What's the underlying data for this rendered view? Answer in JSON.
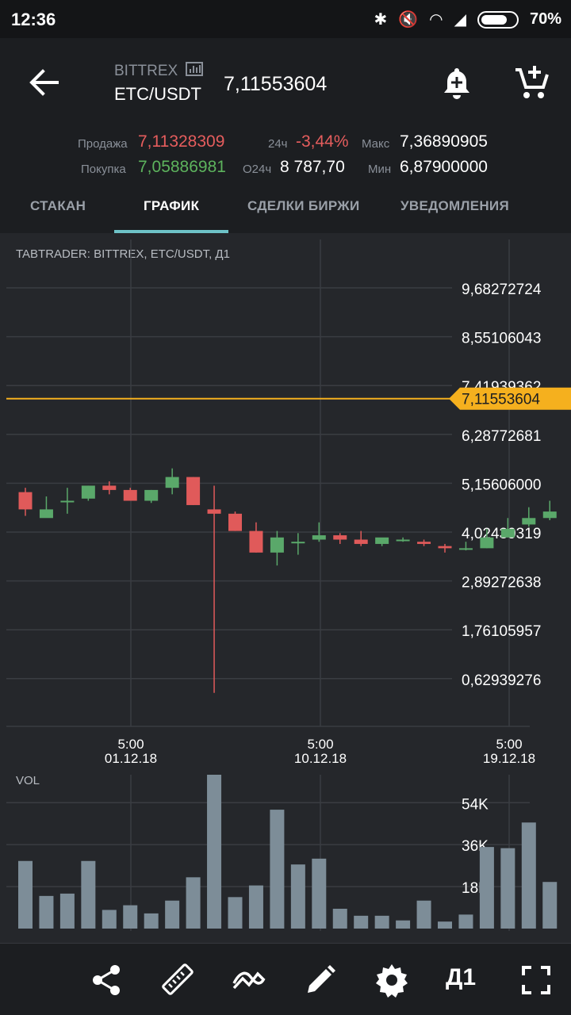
{
  "status_bar": {
    "time": "12:36",
    "battery": "70%"
  },
  "header": {
    "exchange": "BITTREX",
    "pair": "ETC/USDT",
    "last_price": "7,11553604",
    "sell_label": "Продажа",
    "sell_value": "7,11328309",
    "buy_label": "Покупка",
    "buy_value": "7,05886981",
    "change_label": "24ч",
    "change_value": "-3,44%",
    "volume_label": "О24ч",
    "volume_value": "8 787,70",
    "high_label": "Макс",
    "high_value": "7,36890905",
    "low_label": "Мин",
    "low_value": "6,87900000"
  },
  "tabs": [
    {
      "label": "СТАКАН"
    },
    {
      "label": "ГРАФИК"
    },
    {
      "label": "СДЕЛКИ БИРЖИ"
    },
    {
      "label": "УВЕДОМЛЕНИЯ"
    }
  ],
  "chart": {
    "title": "TABTRADER: BITTREX, ETC/USDT, Д1",
    "current_price_label": "7,11553604",
    "y_ticks": [
      "9,68272724",
      "8,55106043",
      "7,41939362",
      "6,28772681",
      "5,15606000",
      "4,02439319",
      "2,89272638",
      "1,76105957",
      "0,62939276"
    ],
    "x_ticks": [
      {
        "time": "5:00",
        "date": "01.12.18"
      },
      {
        "time": "5:00",
        "date": "10.12.18"
      },
      {
        "time": "5:00",
        "date": "19.12.18"
      }
    ],
    "vol_label": "VOL",
    "vol_ticks": [
      "54K",
      "36K",
      "18K"
    ]
  },
  "colors": {
    "up": "#5aa86a",
    "down": "#e05a5a",
    "price_line": "#f5b01e",
    "active_tab": "#6ec3c8"
  },
  "icons": [
    "back-arrow-icon",
    "bar-chart-icon",
    "bell-plus-icon",
    "cart-plus-icon",
    "share-icon",
    "ruler-icon",
    "indicator-icon",
    "pencil-icon",
    "gear-icon",
    "fullscreen-icon"
  ],
  "bottom_bar": {
    "timeframe": "Д1"
  },
  "chart_data": {
    "type": "candlestick",
    "title": "TABTRADER: BITTREX, ETC/USDT, Д1",
    "ylim": [
      0.0,
      10.25
    ],
    "current_price": 7.11553604,
    "candles": [
      {
        "o": 4.95,
        "h": 5.05,
        "l": 4.4,
        "c": 4.55
      },
      {
        "o": 4.35,
        "h": 4.85,
        "l": 4.4,
        "c": 4.55
      },
      {
        "o": 4.75,
        "h": 5.05,
        "l": 4.45,
        "c": 4.75
      },
      {
        "o": 4.8,
        "h": 5.1,
        "l": 4.75,
        "c": 5.1
      },
      {
        "o": 5.1,
        "h": 5.2,
        "l": 4.9,
        "c": 5.0
      },
      {
        "o": 5.0,
        "h": 5.05,
        "l": 4.75,
        "c": 4.75
      },
      {
        "o": 4.75,
        "h": 5.0,
        "l": 4.7,
        "c": 5.0
      },
      {
        "o": 5.05,
        "h": 5.5,
        "l": 4.9,
        "c": 5.3
      },
      {
        "o": 5.3,
        "h": 5.3,
        "l": 4.65,
        "c": 4.65
      },
      {
        "o": 4.55,
        "h": 5.1,
        "l": 0.3,
        "c": 4.45
      },
      {
        "o": 4.45,
        "h": 4.5,
        "l": 4.05,
        "c": 4.05
      },
      {
        "o": 4.05,
        "h": 4.25,
        "l": 3.55,
        "c": 3.55
      },
      {
        "o": 3.55,
        "h": 4.05,
        "l": 3.25,
        "c": 3.9
      },
      {
        "o": 3.8,
        "h": 4.0,
        "l": 3.5,
        "c": 3.8
      },
      {
        "o": 3.85,
        "h": 4.25,
        "l": 3.8,
        "c": 3.95
      },
      {
        "o": 3.95,
        "h": 4.0,
        "l": 3.75,
        "c": 3.85
      },
      {
        "o": 3.85,
        "h": 4.05,
        "l": 3.7,
        "c": 3.75
      },
      {
        "o": 3.75,
        "h": 3.85,
        "l": 3.7,
        "c": 3.9
      },
      {
        "o": 3.85,
        "h": 3.9,
        "l": 3.8,
        "c": 3.85
      },
      {
        "o": 3.8,
        "h": 3.85,
        "l": 3.7,
        "c": 3.75
      },
      {
        "o": 3.7,
        "h": 3.75,
        "l": 3.55,
        "c": 3.65
      },
      {
        "o": 3.65,
        "h": 3.8,
        "l": 3.6,
        "c": 3.65
      },
      {
        "o": 3.65,
        "h": 4.1,
        "l": 3.65,
        "c": 3.9
      },
      {
        "o": 3.9,
        "h": 4.35,
        "l": 3.9,
        "c": 4.1
      },
      {
        "o": 4.2,
        "h": 4.6,
        "l": 4.15,
        "c": 4.35
      },
      {
        "o": 4.35,
        "h": 4.75,
        "l": 4.3,
        "c": 4.5
      }
    ],
    "volume_ylim": [
      0,
      66000
    ],
    "volumes": [
      29000,
      14000,
      15000,
      29000,
      8000,
      10000,
      6500,
      12000,
      22000,
      66000,
      13500,
      18500,
      51000,
      27500,
      30000,
      8500,
      5500,
      5500,
      3500,
      12000,
      3000,
      6000,
      35000,
      34500,
      45500,
      20000
    ]
  }
}
